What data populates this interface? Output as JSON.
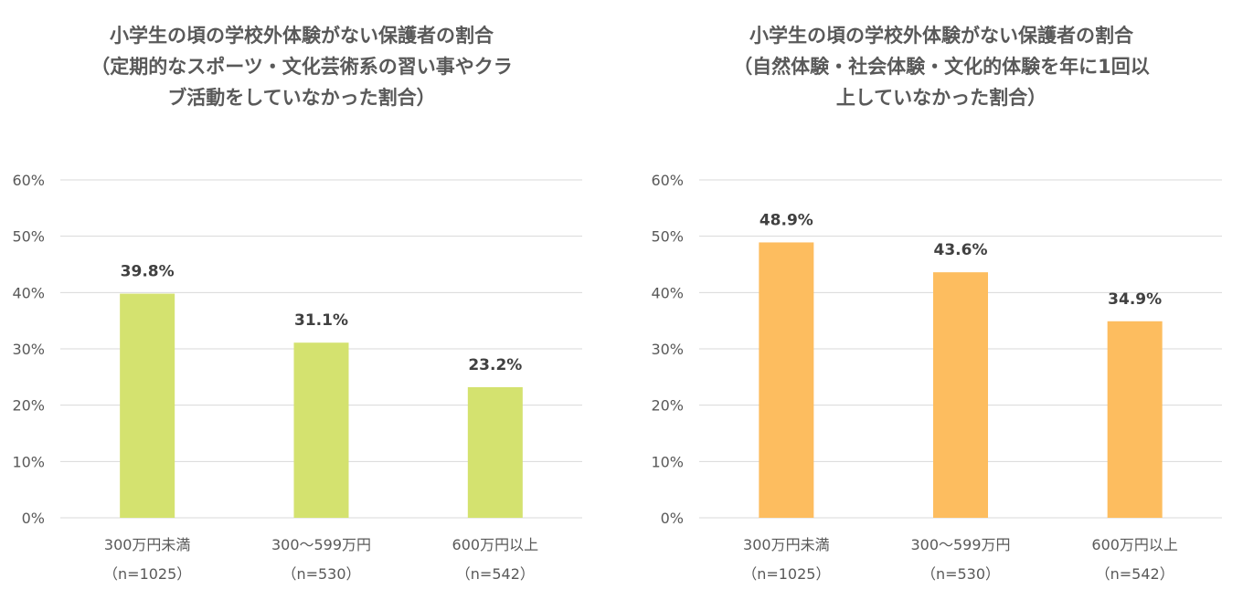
{
  "chart_data": [
    {
      "type": "bar",
      "title_lines": [
        "小学生の頃の学校外体験がない保護者の割合",
        "（定期的なスポーツ・文化芸術系の習い事やクラ",
        "ブ活動をしていなかった割合）"
      ],
      "categories": [
        "300万円未満",
        "300〜599万円",
        "600万円以上"
      ],
      "category_notes": [
        "（n=1025）",
        "（n=530）",
        "（n=542）"
      ],
      "values": [
        39.8,
        31.1,
        23.2
      ],
      "value_labels": [
        "39.8%",
        "31.1%",
        "23.2%"
      ],
      "ylim": [
        0,
        60
      ],
      "yticks": [
        0,
        10,
        20,
        30,
        40,
        50,
        60
      ],
      "ytick_labels": [
        "0%",
        "10%",
        "20%",
        "30%",
        "40%",
        "50%",
        "60%"
      ],
      "bar_color": "#d4e26f",
      "grid": true,
      "legend": "none"
    },
    {
      "type": "bar",
      "title_lines": [
        "小学生の頃の学校外体験がない保護者の割合",
        "（自然体験・社会体験・文化的体験を年に1回以",
        "上していなかった割合）"
      ],
      "categories": [
        "300万円未満",
        "300〜599万円",
        "600万円以上"
      ],
      "category_notes": [
        "（n=1025）",
        "（n=530）",
        "（n=542）"
      ],
      "values": [
        48.9,
        43.6,
        34.9
      ],
      "value_labels": [
        "48.9%",
        "43.6%",
        "34.9%"
      ],
      "ylim": [
        0,
        60
      ],
      "yticks": [
        0,
        10,
        20,
        30,
        40,
        50,
        60
      ],
      "ytick_labels": [
        "0%",
        "10%",
        "20%",
        "30%",
        "40%",
        "50%",
        "60%"
      ],
      "bar_color": "#fdbd5f",
      "grid": true,
      "legend": "none"
    }
  ]
}
